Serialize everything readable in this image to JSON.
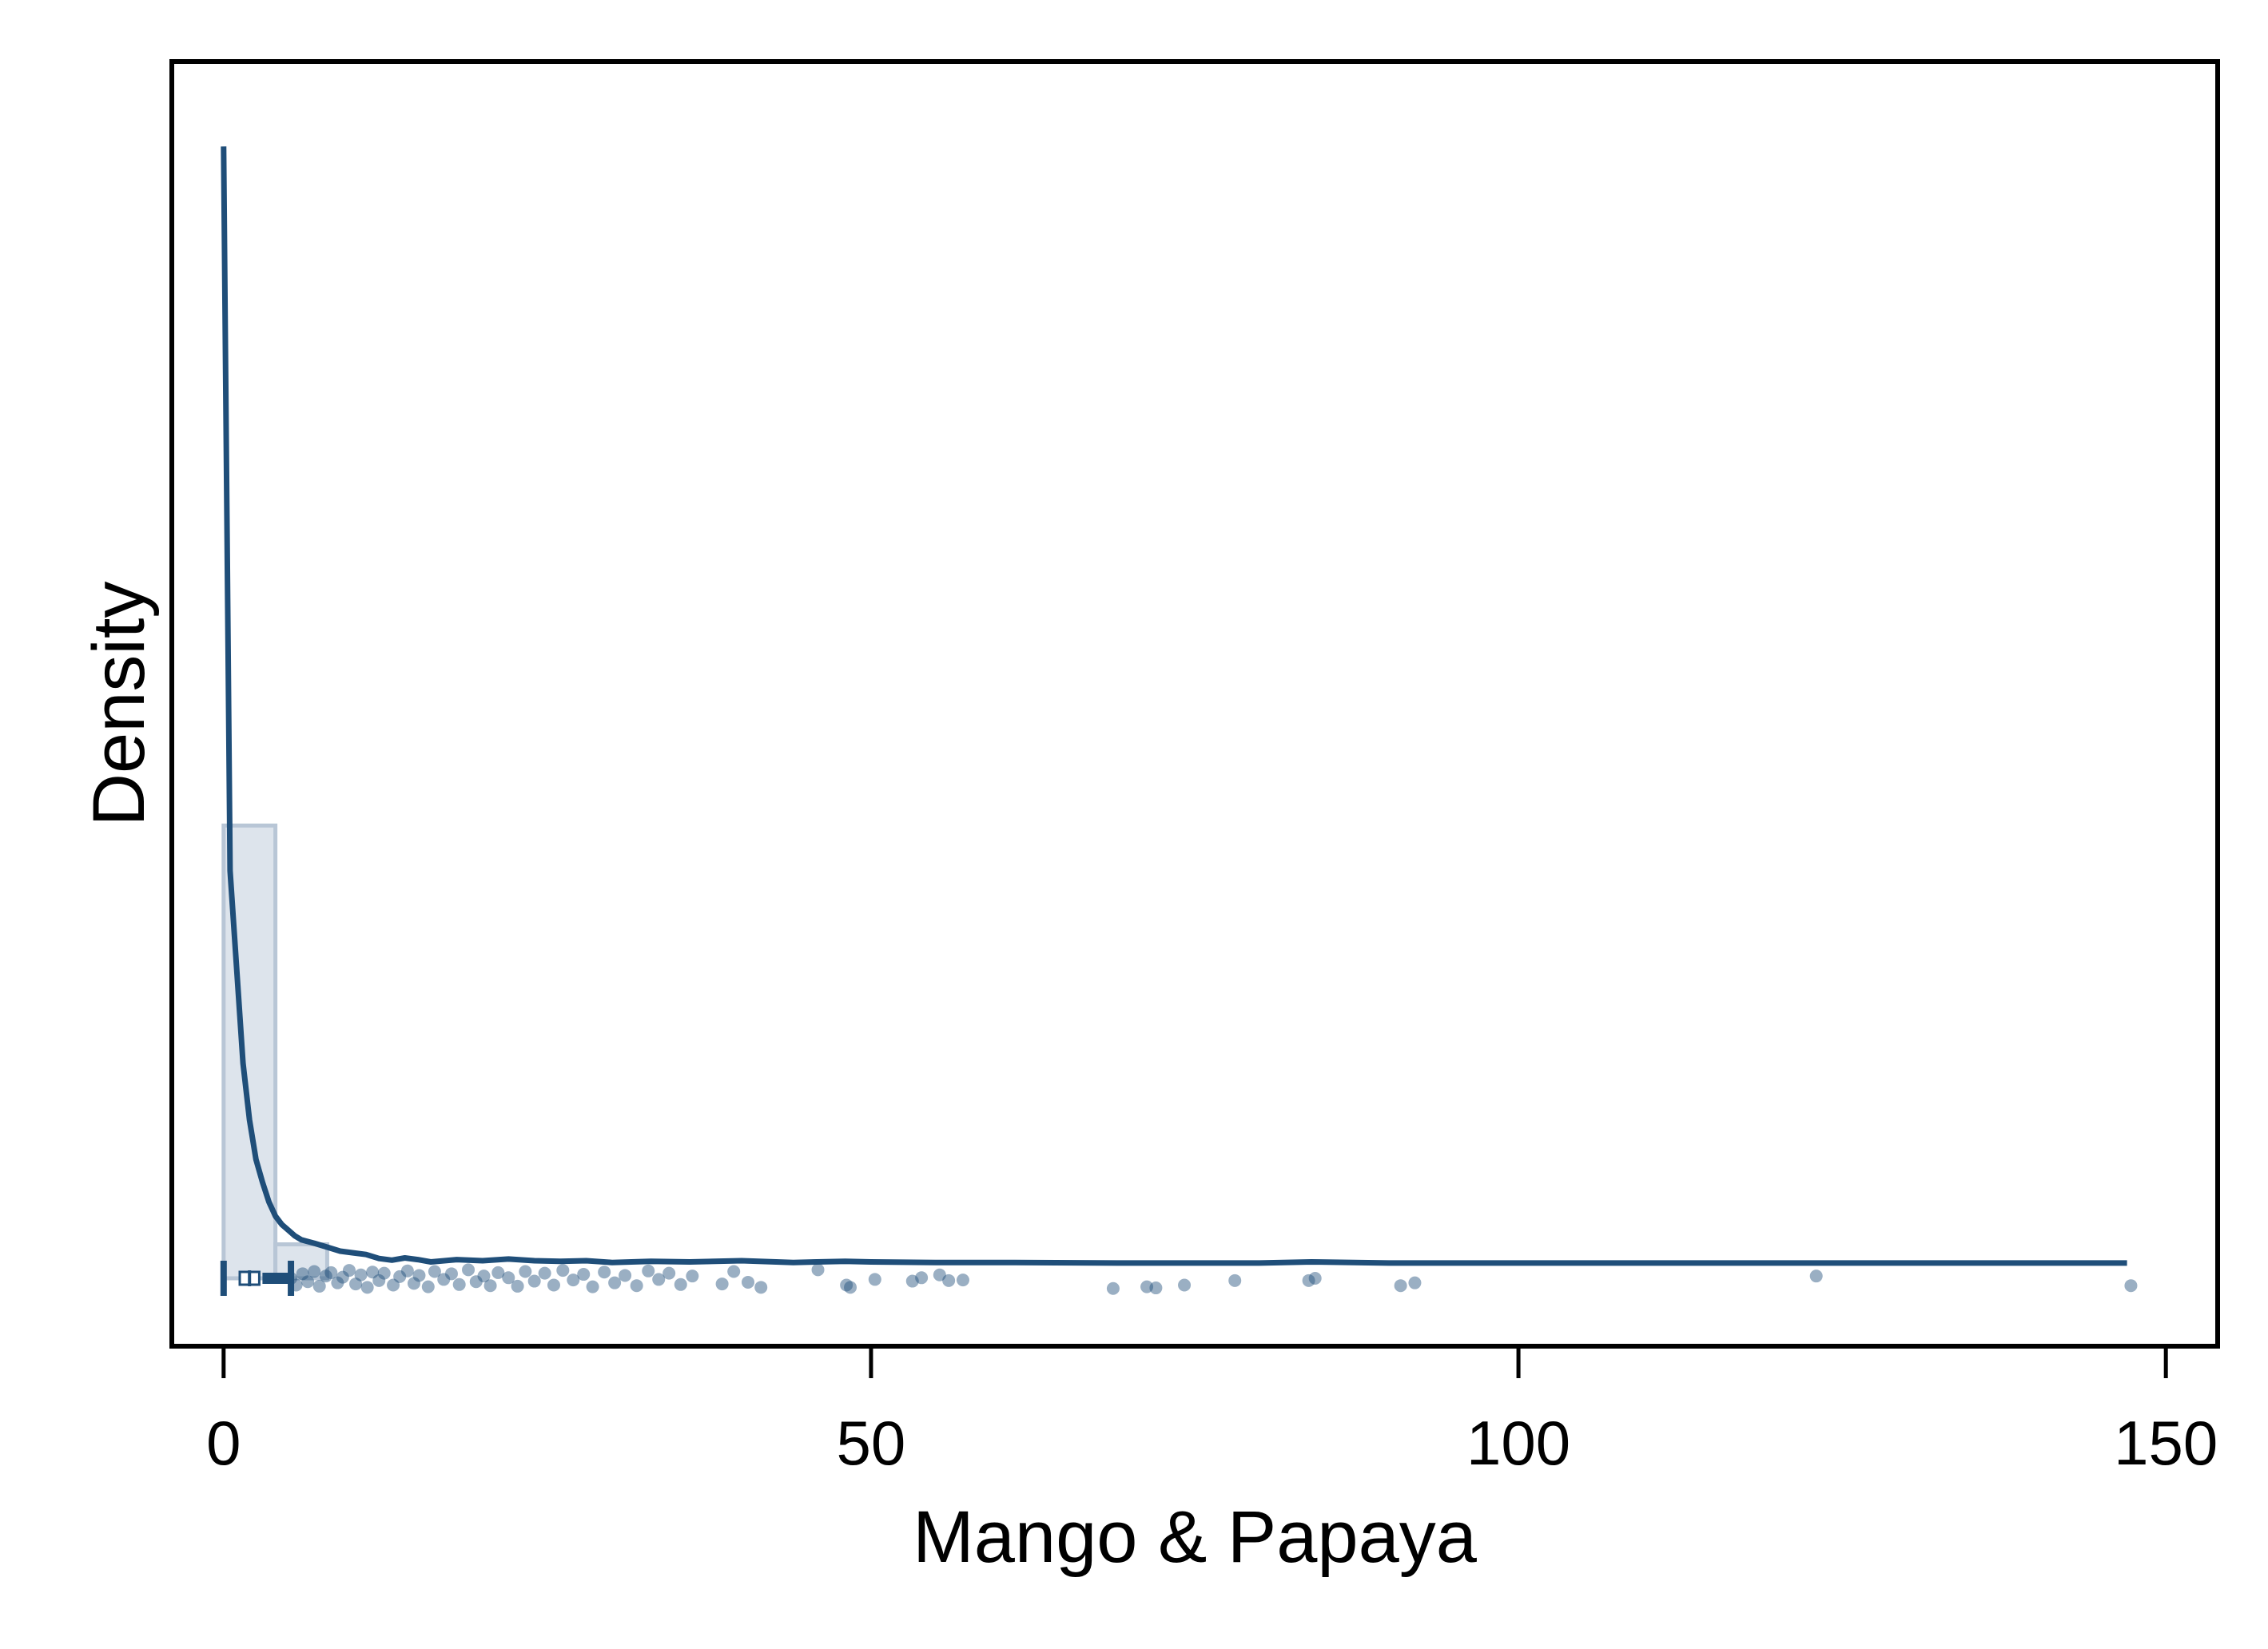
{
  "chart_data": {
    "type": "histogram",
    "title": "",
    "xlabel": "Mango & Papaya",
    "ylabel": "Density",
    "xlim": [
      -4,
      154
    ],
    "ylim": [
      -0.012,
      0.215
    ],
    "x_ticks": [
      0,
      50,
      100,
      150
    ],
    "x_tick_labels": [
      "0",
      "50",
      "100",
      "150"
    ],
    "y_ticks_shown": false,
    "grid": false,
    "legend": "none",
    "colors": {
      "line": "#1f4e79",
      "bar_fill": "#dde4ec",
      "bar_stroke": "#b8c6d6",
      "points": "#1f4e79"
    },
    "histogram": {
      "bin_width": 4,
      "bins": [
        {
          "x0": 0,
          "x1": 4,
          "density": 0.08
        },
        {
          "x0": 4,
          "x1": 8,
          "density": 0.006
        }
      ]
    },
    "density_curve": {
      "x": [
        0,
        0.5,
        1,
        1.5,
        2,
        2.5,
        3,
        3.5,
        4,
        4.5,
        5,
        5.5,
        6,
        7,
        8,
        9,
        10,
        11,
        12,
        13,
        14,
        15,
        16,
        18,
        20,
        22,
        24,
        26,
        28,
        30,
        33,
        36,
        40,
        44,
        48,
        50,
        55,
        60,
        70,
        80,
        84,
        90,
        100,
        110,
        120,
        130,
        140,
        147
      ],
      "y": [
        0.2,
        0.072,
        0.055,
        0.038,
        0.028,
        0.021,
        0.017,
        0.0135,
        0.011,
        0.0095,
        0.0085,
        0.0075,
        0.0068,
        0.0062,
        0.0055,
        0.0048,
        0.0045,
        0.0042,
        0.0035,
        0.0032,
        0.0036,
        0.0033,
        0.0029,
        0.0033,
        0.0031,
        0.0034,
        0.0031,
        0.003,
        0.0031,
        0.0028,
        0.003,
        0.0029,
        0.0031,
        0.0028,
        0.003,
        0.0029,
        0.0028,
        0.0028,
        0.0027,
        0.0027,
        0.0029,
        0.0027,
        0.0027,
        0.0027,
        0.0027,
        0.0027,
        0.0027,
        0.0027
      ]
    },
    "jittered_points": {
      "x": [
        5.2,
        5.6,
        6.1,
        6.5,
        7.0,
        7.4,
        7.9,
        8.3,
        8.8,
        9.2,
        9.7,
        10.2,
        10.6,
        11.1,
        11.5,
        12.0,
        12.4,
        13.1,
        13.6,
        14.2,
        14.7,
        15.1,
        15.8,
        16.3,
        17.0,
        17.6,
        18.2,
        18.9,
        19.5,
        20.1,
        20.6,
        21.2,
        22.0,
        22.7,
        23.3,
        24.0,
        24.8,
        25.5,
        26.2,
        27.0,
        27.8,
        28.5,
        29.4,
        30.2,
        31.0,
        31.9,
        32.8,
        33.6,
        34.4,
        35.3,
        36.2,
        38.5,
        39.4,
        40.5,
        41.5,
        45.9,
        48.1,
        48.4,
        50.3,
        53.2,
        53.9,
        55.3,
        56.0,
        57.1,
        68.7,
        71.3,
        72.0,
        74.2,
        78.1,
        83.8,
        84.3,
        90.9,
        92.0,
        123.0,
        147.3
      ],
      "y": [
        0.0,
        -0.0012,
        0.0008,
        -0.0006,
        0.0012,
        -0.0014,
        0.0004,
        0.001,
        -0.0008,
        0.0002,
        0.0014,
        -0.001,
        0.0006,
        -0.0016,
        0.0011,
        -0.0004,
        0.0009,
        -0.0012,
        0.0003,
        0.0013,
        -0.0009,
        0.0005,
        -0.0015,
        0.0012,
        -0.0002,
        0.0008,
        -0.0011,
        0.0015,
        -0.0006,
        0.0004,
        -0.0013,
        0.001,
        0.0001,
        -0.0014,
        0.0012,
        -0.0005,
        0.0009,
        -0.0012,
        0.0014,
        -0.0003,
        0.0007,
        -0.0015,
        0.0011,
        -0.0008,
        0.0005,
        -0.0013,
        0.0013,
        -0.0002,
        0.0009,
        -0.0011,
        0.0004,
        -0.001,
        0.0012,
        -0.0007,
        -0.0016,
        0.0015,
        -0.0012,
        -0.0016,
        -0.0002,
        -0.0005,
        0.0001,
        0.0006,
        -0.0004,
        -0.0003,
        -0.0018,
        -0.0015,
        -0.0017,
        -0.0012,
        -0.0004,
        -0.0004,
        0.0,
        -0.0013,
        -0.0008,
        0.0004,
        -0.0013
      ]
    },
    "box_plot": {
      "min": 0,
      "q1": 1,
      "median": 2,
      "q3": 3,
      "upper_whisker": 5.2
    }
  }
}
